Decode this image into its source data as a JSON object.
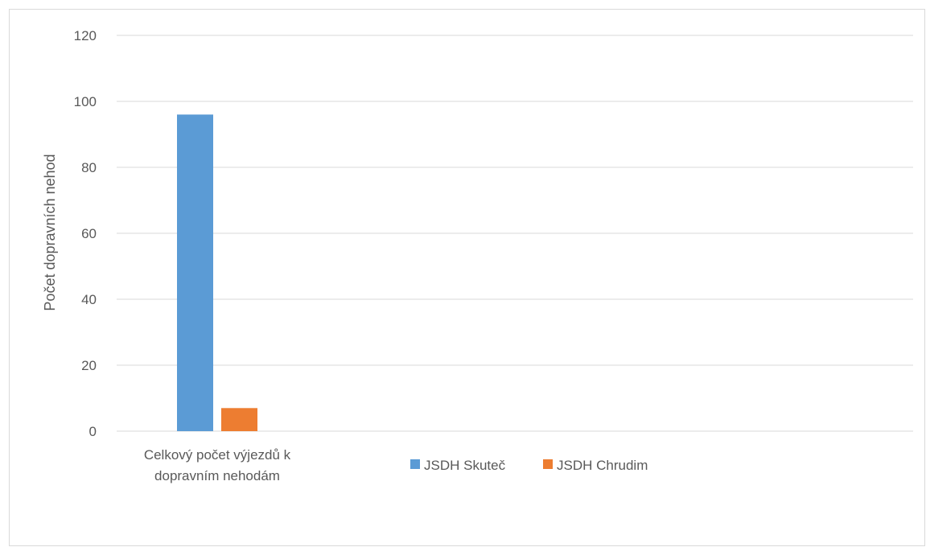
{
  "chart_data": {
    "type": "bar",
    "categories": [
      [
        "Celkový počet výjezdů k",
        "dopravním nehodám"
      ]
    ],
    "series": [
      {
        "name": "JSDH Skuteč",
        "color": "#5b9bd5",
        "values": [
          96
        ]
      },
      {
        "name": "JSDH Chrudim",
        "color": "#ed7d31",
        "values": [
          7
        ]
      }
    ],
    "ylabel": "Počet dopravních nehod",
    "ylim": [
      0,
      120
    ],
    "yticks": [
      "0",
      "20",
      "40",
      "60",
      "80",
      "100",
      "120"
    ],
    "ytick_values": [
      0,
      20,
      40,
      60,
      80,
      100,
      120
    ],
    "grid": true,
    "legend": "bottom-center",
    "category_slots": 3
  }
}
